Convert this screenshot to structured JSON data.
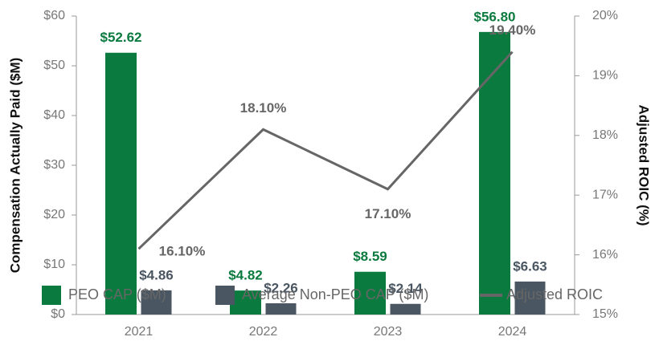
{
  "chart_data": {
    "type": "bar",
    "y_label": "Compensation Actually Paid ($M)",
    "y2_label": "Adjusted ROIC (%)",
    "categories": [
      "2021",
      "2022",
      "2023",
      "2024"
    ],
    "series": [
      {
        "name": "PEO CAP ($M)",
        "type": "bar",
        "color": "#0b7a3e",
        "values": [
          52.62,
          4.82,
          8.59,
          56.8
        ],
        "value_labels": [
          "$52.62",
          "$4.82",
          "$8.59",
          "$56.80"
        ]
      },
      {
        "name": "Average Non-PEO CAP ($M)",
        "type": "bar",
        "color": "#4a5662",
        "values": [
          4.86,
          2.26,
          2.14,
          6.63
        ],
        "value_labels": [
          "$4.86",
          "$2.26",
          "$2.14",
          "$6.63"
        ]
      },
      {
        "name": "Adjusted ROIC",
        "type": "line",
        "axis": "y2",
        "color": "#666666",
        "values": [
          16.1,
          18.1,
          17.1,
          19.4
        ],
        "value_labels": [
          "16.10%",
          "18.10%",
          "17.10%",
          "19.40%"
        ]
      }
    ],
    "ylim": [
      0,
      60
    ],
    "yticks": [
      {
        "value": 0,
        "label": "$0"
      },
      {
        "value": 10,
        "label": "$10"
      },
      {
        "value": 20,
        "label": "$20"
      },
      {
        "value": 30,
        "label": "$30"
      },
      {
        "value": 40,
        "label": "$40"
      },
      {
        "value": 50,
        "label": "$50"
      },
      {
        "value": 60,
        "label": "$60"
      }
    ],
    "y2lim": [
      15,
      20
    ],
    "y2ticks": [
      {
        "value": 15,
        "label": "15%"
      },
      {
        "value": 16,
        "label": "16%"
      },
      {
        "value": 17,
        "label": "17%"
      },
      {
        "value": 18,
        "label": "18%"
      },
      {
        "value": 19,
        "label": "19%"
      },
      {
        "value": 20,
        "label": "20%"
      }
    ],
    "legend": "bottom"
  }
}
